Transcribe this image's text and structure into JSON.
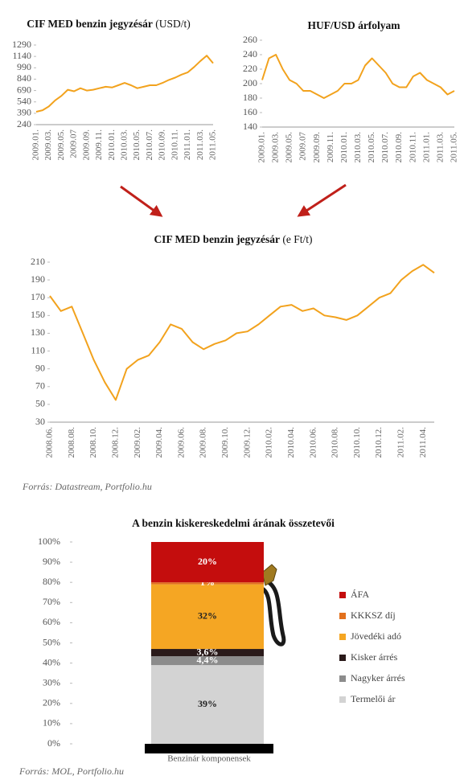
{
  "chart_data": [
    {
      "type": "line",
      "title": "CIF MED benzin jegyzésár",
      "title_unit": "(USD/t)",
      "color": "#f2a21d",
      "categories": [
        "2009.01.",
        null,
        "2009.03.",
        null,
        "2009.05.",
        null,
        "2009.07",
        null,
        "2009.09.",
        null,
        "2009.11.",
        null,
        "2010.01.",
        null,
        "2010.03.",
        null,
        "2010.05.",
        null,
        "2010.07.",
        null,
        "2010.09.",
        null,
        "2010.11.",
        null,
        "2011.01.",
        null,
        "2011.03.",
        null,
        "2011.05."
      ],
      "values": [
        410,
        430,
        480,
        560,
        620,
        700,
        680,
        720,
        690,
        700,
        720,
        740,
        730,
        760,
        790,
        760,
        720,
        740,
        760,
        760,
        790,
        830,
        860,
        900,
        930,
        1000,
        1080,
        1150,
        1050
      ],
      "ylim": [
        240,
        1290
      ],
      "yticks": [
        240,
        390,
        540,
        690,
        840,
        990,
        1140,
        1290
      ]
    },
    {
      "type": "line",
      "title": "HUF/USD árfolyam",
      "color": "#f2a21d",
      "categories": [
        "2009.01.",
        null,
        "2009.03.",
        null,
        "2009.05.",
        null,
        "2009.07",
        null,
        "2009.09.",
        null,
        "2009.11.",
        null,
        "2010.01.",
        null,
        "2010.03.",
        null,
        "2010.05.",
        null,
        "2010.07.",
        null,
        "2010.09.",
        null,
        "2010.11.",
        null,
        "2011.01.",
        null,
        "2011.03.",
        null,
        "2011.05."
      ],
      "values": [
        205,
        235,
        240,
        220,
        205,
        200,
        190,
        190,
        185,
        180,
        185,
        190,
        200,
        200,
        205,
        225,
        235,
        225,
        215,
        200,
        195,
        195,
        210,
        215,
        205,
        200,
        195,
        185,
        190
      ],
      "ylim": [
        140,
        260
      ],
      "yticks": [
        140,
        160,
        180,
        200,
        220,
        240,
        260
      ]
    },
    {
      "type": "line",
      "title": "CIF MED  benzin jegyzésár",
      "title_unit": "(e Ft/t)",
      "color": "#f2a21d",
      "categories": [
        "2008.06.",
        null,
        "2008.08.",
        null,
        "2008.10.",
        null,
        "2008.12.",
        null,
        "2009.02.",
        null,
        "2009.04.",
        null,
        "2009.06.",
        null,
        "2009.08.",
        null,
        "2009.10.",
        null,
        "2009.12.",
        null,
        "2010.02.",
        null,
        "2010.04.",
        null,
        "2010.06.",
        null,
        "2010.08.",
        null,
        "2010.10.",
        null,
        "2010.12.",
        null,
        "2011.02.",
        null,
        "2011.04.",
        null
      ],
      "values": [
        172,
        155,
        160,
        130,
        100,
        75,
        55,
        90,
        100,
        105,
        120,
        140,
        135,
        120,
        112,
        118,
        122,
        130,
        132,
        140,
        150,
        160,
        162,
        155,
        158,
        150,
        148,
        145,
        150,
        160,
        170,
        175,
        190,
        200,
        207,
        198
      ],
      "ylim": [
        30,
        210
      ],
      "yticks": [
        30,
        50,
        70,
        90,
        110,
        130,
        150,
        170,
        190,
        210
      ],
      "source": "Forrás: Datastream, Portfolio.hu"
    },
    {
      "type": "stacked-bar",
      "title": "A benzin kiskereskedelmi árának összetevői",
      "categories": [
        "Benzinár komponensek"
      ],
      "series": [
        {
          "name": "Termelői ár",
          "color": "#d3d3d3",
          "values": [
            39
          ],
          "value_labels": [
            "39%"
          ]
        },
        {
          "name": "Nagyker árrés",
          "color": "#8c8c8c",
          "values": [
            4.4
          ],
          "value_labels": [
            "4,4%"
          ]
        },
        {
          "name": "Kisker árrés",
          "color": "#2a1a1a",
          "values": [
            3.6
          ],
          "value_labels": [
            "3,6%"
          ]
        },
        {
          "name": "Jövedéki adó",
          "color": "#f5a623",
          "values": [
            32
          ],
          "value_labels": [
            "32%"
          ]
        },
        {
          "name": "KKKSZ díj",
          "color": "#e2701c",
          "values": [
            1
          ],
          "value_labels": [
            "1%"
          ]
        },
        {
          "name": "ÁFA",
          "color": "#c40d0d",
          "values": [
            20
          ],
          "value_labels": [
            "20%"
          ]
        }
      ],
      "ylim": [
        0,
        100
      ],
      "yticks": [
        {
          "value": 0,
          "label": "0%"
        },
        {
          "value": 10,
          "label": "10%"
        },
        {
          "value": 20,
          "label": "20%"
        },
        {
          "value": 30,
          "label": "30%"
        },
        {
          "value": 40,
          "label": "40%"
        },
        {
          "value": 50,
          "label": "50%"
        },
        {
          "value": 60,
          "label": "60%"
        },
        {
          "value": 70,
          "label": "70%"
        },
        {
          "value": 80,
          "label": "80%"
        },
        {
          "value": 90,
          "label": "90%"
        },
        {
          "value": 100,
          "label": "100%"
        }
      ],
      "source": "Forrás: MOL, Portfolio.hu"
    }
  ]
}
